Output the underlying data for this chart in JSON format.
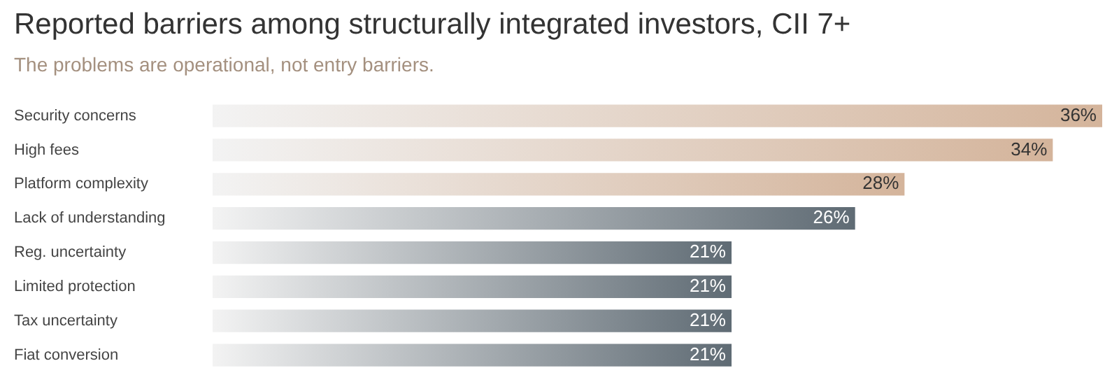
{
  "chart_data": {
    "type": "bar",
    "orientation": "horizontal",
    "title": "Reported barriers among structurally integrated investors, CII 7+",
    "subtitle": "The problems are operational, not entry barriers.",
    "categories": [
      "Security concerns",
      "High fees",
      "Platform complexity",
      "Lack of understanding",
      "Reg. uncertainty",
      "Limited protection",
      "Tax uncertainty",
      "Fiat conversion"
    ],
    "values": [
      36,
      34,
      28,
      26,
      21,
      21,
      21,
      21
    ],
    "colors": [
      "#d4b49b",
      "#d4b49b",
      "#d4b49b",
      "#5f6b74",
      "#5f6b74",
      "#5f6b74",
      "#5f6b74",
      "#5f6b74"
    ],
    "value_labels": [
      "36%",
      "34%",
      "28%",
      "26%",
      "21%",
      "21%",
      "21%",
      "21%"
    ],
    "legend": false
  }
}
